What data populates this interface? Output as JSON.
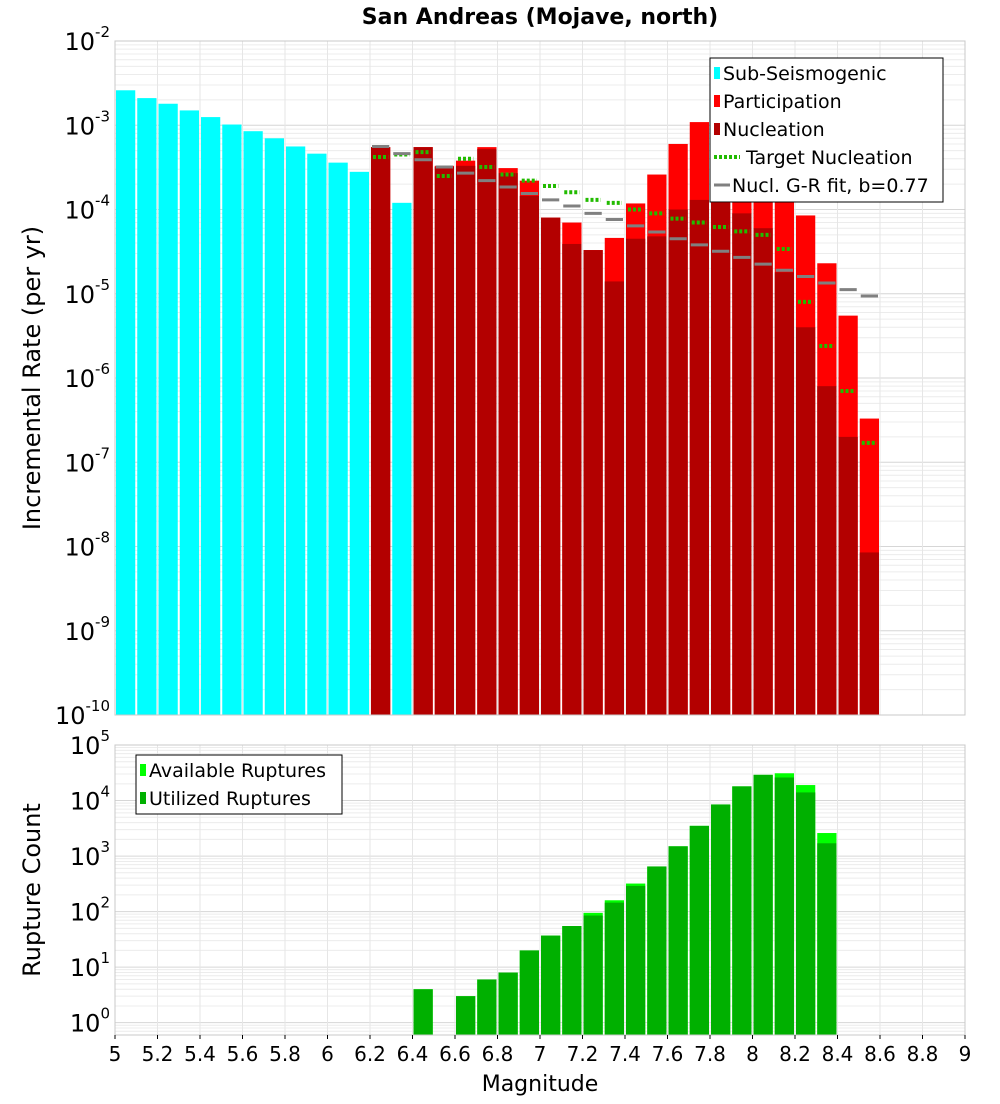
{
  "chart_data": [
    {
      "type": "bar",
      "title": "San Andreas (Mojave,  north)",
      "ylabel": "Incremental Rate (per yr)",
      "xlabel": "",
      "xlim": [
        5,
        9
      ],
      "ylim": [
        1e-10,
        0.01
      ],
      "yscale": "log",
      "bin_width": 0.1,
      "grid": true,
      "legend_position": "top-right",
      "y_ticks": [
        {
          "base": "10",
          "exp": "-10"
        },
        {
          "base": "10",
          "exp": "-9"
        },
        {
          "base": "10",
          "exp": "-8"
        },
        {
          "base": "10",
          "exp": "-7"
        },
        {
          "base": "10",
          "exp": "-6"
        },
        {
          "base": "10",
          "exp": "-5"
        },
        {
          "base": "10",
          "exp": "-4"
        },
        {
          "base": "10",
          "exp": "-3"
        },
        {
          "base": "10",
          "exp": "-2"
        }
      ],
      "legend": [
        {
          "label": "Sub-Seismogenic",
          "color": "#00ffff",
          "style": "bar"
        },
        {
          "label": "Participation",
          "color": "#ff0000",
          "style": "bar"
        },
        {
          "label": "Nucleation",
          "color": "#b30000",
          "style": "bar"
        },
        {
          "label": "Target Nucleation",
          "color": "#22bb00",
          "style": "dotted"
        },
        {
          "label": "Nucl. G-R fit, b=0.77",
          "color": "#808080",
          "style": "line"
        }
      ],
      "series": [
        {
          "name": "Sub-Seismogenic",
          "color": "#00ffff",
          "x": [
            5.05,
            5.15,
            5.25,
            5.35,
            5.45,
            5.55,
            5.65,
            5.75,
            5.85,
            5.95,
            6.05,
            6.15,
            6.35
          ],
          "values": [
            0.0026,
            0.0021,
            0.0018,
            0.0015,
            0.00125,
            0.00102,
            0.00085,
            0.0007,
            0.00056,
            0.00046,
            0.00036,
            0.00028,
            0.00012
          ]
        },
        {
          "name": "Participation",
          "color": "#ff0000",
          "x": [
            6.25,
            6.45,
            6.55,
            6.65,
            6.75,
            6.85,
            6.95,
            7.05,
            7.15,
            7.25,
            7.35,
            7.45,
            7.55,
            7.65,
            7.75,
            7.85,
            7.95,
            8.05,
            8.15,
            8.25,
            8.35,
            8.45,
            8.55
          ],
          "values": [
            0.00055,
            0.00055,
            0.00033,
            0.00038,
            0.00055,
            0.00031,
            0.00022,
            8e-05,
            7e-05,
            3.3e-05,
            4.6e-05,
            0.000118,
            0.00026,
            0.0006,
            0.00109,
            0.00155,
            0.00141,
            0.00085,
            0.00028,
            8.5e-05,
            2.3e-05,
            5.5e-06,
            3.3e-07
          ]
        },
        {
          "name": "Nucleation",
          "color": "#b30000",
          "x": [
            6.25,
            6.45,
            6.55,
            6.65,
            6.75,
            6.85,
            6.95,
            7.05,
            7.15,
            7.25,
            7.35,
            7.45,
            7.55,
            7.65,
            7.75,
            7.85,
            7.95,
            8.05,
            8.15,
            8.25,
            8.35,
            8.45,
            8.55
          ],
          "values": [
            0.00055,
            0.00055,
            0.00032,
            0.00033,
            0.00052,
            0.00027,
            0.000145,
            8e-05,
            3.9e-05,
            3.3e-05,
            1.4e-05,
            4.5e-05,
            4.8e-05,
            0.0001,
            0.00013,
            0.00012,
            9e-05,
            6e-05,
            1.8e-05,
            4e-06,
            8e-07,
            2e-07,
            8.5e-09
          ]
        },
        {
          "name": "Target Nucleation",
          "color": "#22bb00",
          "x": [
            6.25,
            6.35,
            6.45,
            6.55,
            6.65,
            6.75,
            6.85,
            6.95,
            7.05,
            7.15,
            7.25,
            7.35,
            7.45,
            7.55,
            7.65,
            7.75,
            7.85,
            7.95,
            8.05,
            8.15,
            8.25,
            8.35,
            8.45,
            8.55
          ],
          "values": [
            0.00042,
            0.00045,
            0.00048,
            0.00025,
            0.0004,
            0.00032,
            0.00026,
            0.00022,
            0.00019,
            0.00016,
            0.00013,
            0.00012,
            0.0001,
            9e-05,
            7.8e-05,
            7e-05,
            6.2e-05,
            5.5e-05,
            5e-05,
            3.4e-05,
            8e-06,
            2.4e-06,
            7e-07,
            1.7e-07
          ]
        },
        {
          "name": "Nucl. G-R fit, b=0.77",
          "color": "#808080",
          "x": [
            6.25,
            6.35,
            6.45,
            6.55,
            6.65,
            6.75,
            6.85,
            6.95,
            7.05,
            7.15,
            7.25,
            7.35,
            7.45,
            7.55,
            7.65,
            7.75,
            7.85,
            7.95,
            8.05,
            8.15,
            8.25,
            8.35,
            8.45,
            8.55
          ],
          "values": [
            0.00056,
            0.00046,
            0.00039,
            0.00032,
            0.00027,
            0.00022,
            0.000185,
            0.000155,
            0.00013,
            0.00011,
            9e-05,
            7.6e-05,
            6.4e-05,
            5.4e-05,
            4.5e-05,
            3.8e-05,
            3.2e-05,
            2.7e-05,
            2.25e-05,
            1.9e-05,
            1.6e-05,
            1.34e-05,
            1.12e-05,
            9.4e-06
          ]
        }
      ]
    },
    {
      "type": "bar",
      "title": "",
      "ylabel": "Rupture Count",
      "xlabel": "Magnitude",
      "xlim": [
        5,
        9
      ],
      "ylim": [
        0.6,
        100000
      ],
      "yscale": "log",
      "bin_width": 0.1,
      "grid": true,
      "legend_position": "top-left",
      "x_ticks": [
        "5",
        "5.2",
        "5.4",
        "5.6",
        "5.8",
        "6",
        "6.2",
        "6.4",
        "6.6",
        "6.8",
        "7",
        "7.2",
        "7.4",
        "7.6",
        "7.8",
        "8",
        "8.2",
        "8.4",
        "8.6",
        "8.8",
        "9"
      ],
      "y_ticks": [
        {
          "base": "10",
          "exp": "0"
        },
        {
          "base": "10",
          "exp": "1"
        },
        {
          "base": "10",
          "exp": "2"
        },
        {
          "base": "10",
          "exp": "3"
        },
        {
          "base": "10",
          "exp": "4"
        },
        {
          "base": "10",
          "exp": "5"
        }
      ],
      "legend": [
        {
          "label": "Available Ruptures",
          "color": "#00ff00",
          "style": "bar"
        },
        {
          "label": "Utilized Ruptures",
          "color": "#00b000",
          "style": "bar"
        }
      ],
      "series": [
        {
          "name": "Available Ruptures",
          "color": "#00ff00",
          "x": [
            6.45,
            6.65,
            6.75,
            6.85,
            6.95,
            7.05,
            7.15,
            7.25,
            7.35,
            7.45,
            7.55,
            7.65,
            7.75,
            7.85,
            7.95,
            8.05,
            8.15,
            8.25,
            8.35
          ],
          "values": [
            4,
            3,
            6,
            8,
            20,
            37,
            55,
            95,
            160,
            320,
            650,
            1500,
            3500,
            8500,
            18000,
            29000,
            31000,
            19000,
            2600
          ]
        },
        {
          "name": "Utilized Ruptures",
          "color": "#00b000",
          "x": [
            6.45,
            6.65,
            6.75,
            6.85,
            6.95,
            7.05,
            7.15,
            7.25,
            7.35,
            7.45,
            7.55,
            7.65,
            7.75,
            7.85,
            7.95,
            8.05,
            8.15,
            8.25,
            8.35
          ],
          "values": [
            4,
            3,
            6,
            8,
            20,
            37,
            55,
            85,
            145,
            290,
            650,
            1500,
            3500,
            8500,
            18000,
            29000,
            26000,
            14000,
            1700
          ]
        }
      ]
    }
  ]
}
